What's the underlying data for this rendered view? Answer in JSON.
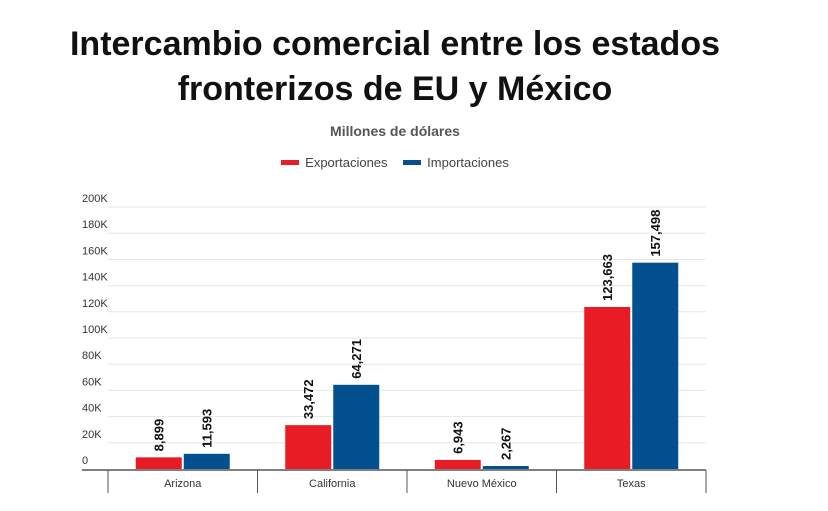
{
  "colors": {
    "exports": "#e81c24",
    "imports": "#02508f",
    "grid": "#e6e6e6",
    "axis": "#555555"
  },
  "chart_data": {
    "type": "bar",
    "title": "Intercambio comercial entre los estados fronterizos de EU y México",
    "subtitle": "Millones de dólares",
    "legend_position": "top",
    "grid": true,
    "categories": [
      "Arizona",
      "California",
      "Nuevo México",
      "Texas"
    ],
    "series": [
      {
        "name": "Exportaciones",
        "values": [
          8899,
          33472,
          6943,
          123663
        ],
        "labels": [
          "8,899",
          "33,472",
          "6,943",
          "123,663"
        ]
      },
      {
        "name": "Importaciones",
        "values": [
          11593,
          64271,
          2267,
          157498
        ],
        "labels": [
          "11,593",
          "64,271",
          "2,267",
          "157,498"
        ]
      }
    ],
    "ylim": [
      0,
      200000
    ],
    "yticks": [
      0,
      20000,
      40000,
      60000,
      80000,
      100000,
      120000,
      140000,
      160000,
      180000,
      200000
    ],
    "ytick_labels": [
      "0",
      "20K",
      "40K",
      "60K",
      "80K",
      "100K",
      "120K",
      "140K",
      "160K",
      "180K",
      "200K"
    ]
  }
}
